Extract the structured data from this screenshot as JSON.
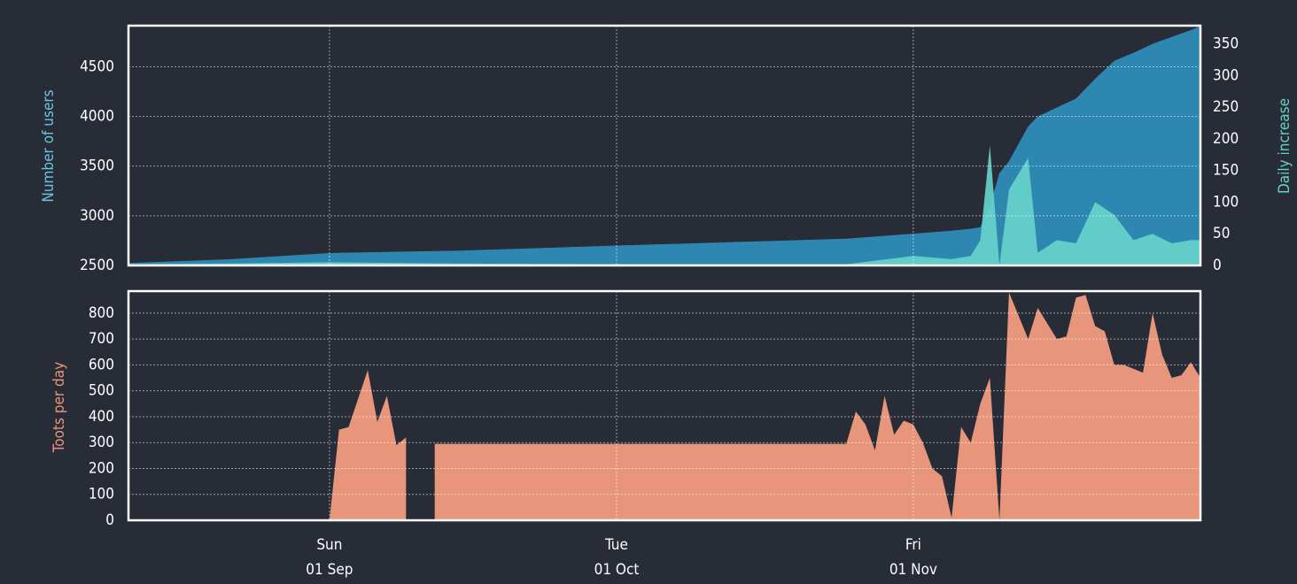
{
  "chart_data": [
    {
      "type": "area",
      "ylabel": "Number of users",
      "y2label": "Daily increase",
      "x": [
        "11 Aug",
        "21 Aug",
        "01 Sep",
        "15 Sep",
        "01 Oct",
        "15 Oct",
        "25 Oct",
        "01 Nov",
        "05 Nov",
        "07 Nov",
        "08 Nov",
        "09 Nov",
        "10 Nov",
        "11 Nov",
        "13 Nov",
        "14 Nov",
        "16 Nov",
        "18 Nov",
        "20 Nov",
        "22 Nov",
        "24 Nov",
        "26 Nov",
        "28 Nov",
        "30 Nov",
        "01 Dec"
      ],
      "series": [
        {
          "name": "Number of users",
          "color": "#2e87b1",
          "axis": "y",
          "values": [
            2525,
            2560,
            2625,
            2650,
            2700,
            2740,
            2770,
            2820,
            2850,
            2870,
            2885,
            3100,
            3430,
            3550,
            3900,
            4000,
            4090,
            4180,
            4380,
            4560,
            4640,
            4730,
            4800,
            4870,
            4910
          ]
        },
        {
          "name": "Daily increase",
          "color": "#66d1ca",
          "axis": "y2",
          "values": [
            2,
            3,
            5,
            3,
            2,
            2,
            2,
            15,
            10,
            15,
            40,
            190,
            0,
            120,
            170,
            20,
            40,
            35,
            100,
            80,
            40,
            50,
            35,
            40,
            40
          ]
        }
      ],
      "xlim": [
        "11 Aug",
        "01 Dec"
      ],
      "ylim": [
        2500,
        4914
      ],
      "yticks": [
        2500,
        3000,
        3500,
        4000,
        4500
      ],
      "y2lim": [
        0,
        379
      ],
      "y2ticks": [
        0,
        50,
        100,
        150,
        200,
        250,
        300,
        350
      ],
      "grid": true
    },
    {
      "type": "area",
      "ylabel": "Toots per day",
      "x": [
        "11 Aug",
        "01 Sep",
        "02 Sep",
        "03 Sep",
        "05 Sep",
        "06 Sep",
        "07 Sep",
        "08 Sep",
        "09 Sep",
        "10 Sep",
        "12 Sep",
        "25 Oct",
        "26 Oct",
        "27 Oct",
        "28 Oct",
        "29 Oct",
        "30 Oct",
        "31 Oct",
        "01 Nov",
        "02 Nov",
        "03 Nov",
        "04 Nov",
        "05 Nov",
        "06 Nov",
        "07 Nov",
        "08 Nov",
        "09 Nov",
        "10 Nov",
        "11 Nov",
        "13 Nov",
        "14 Nov",
        "16 Nov",
        "17 Nov",
        "18 Nov",
        "19 Nov",
        "20 Nov",
        "21 Nov",
        "22 Nov",
        "23 Nov",
        "25 Nov",
        "26 Nov",
        "27 Nov",
        "28 Nov",
        "29 Nov",
        "30 Nov",
        "01 Dec"
      ],
      "series": [
        {
          "name": "Toots per day",
          "color": "#e8967b",
          "axis": "y",
          "values": [
            0,
            0,
            350,
            360,
            580,
            380,
            480,
            290,
            320,
            null,
            295,
            295,
            420,
            370,
            270,
            480,
            330,
            385,
            370,
            300,
            200,
            170,
            10,
            360,
            300,
            450,
            550,
            0,
            880,
            700,
            820,
            700,
            710,
            860,
            870,
            750,
            730,
            600,
            600,
            570,
            800,
            640,
            550,
            560,
            610,
            550
          ]
        }
      ],
      "xlim": [
        "11 Aug",
        "01 Dec"
      ],
      "ylim": [
        0,
        885
      ],
      "yticks": [
        0,
        100,
        200,
        300,
        400,
        500,
        600,
        700,
        800
      ],
      "xticks": [
        {
          "value": "01 Sep",
          "label": "Sun"
        },
        {
          "value": "01 Oct",
          "label": "Tue"
        },
        {
          "value": "01 Nov",
          "label": "Fri"
        }
      ],
      "grid": true
    }
  ]
}
